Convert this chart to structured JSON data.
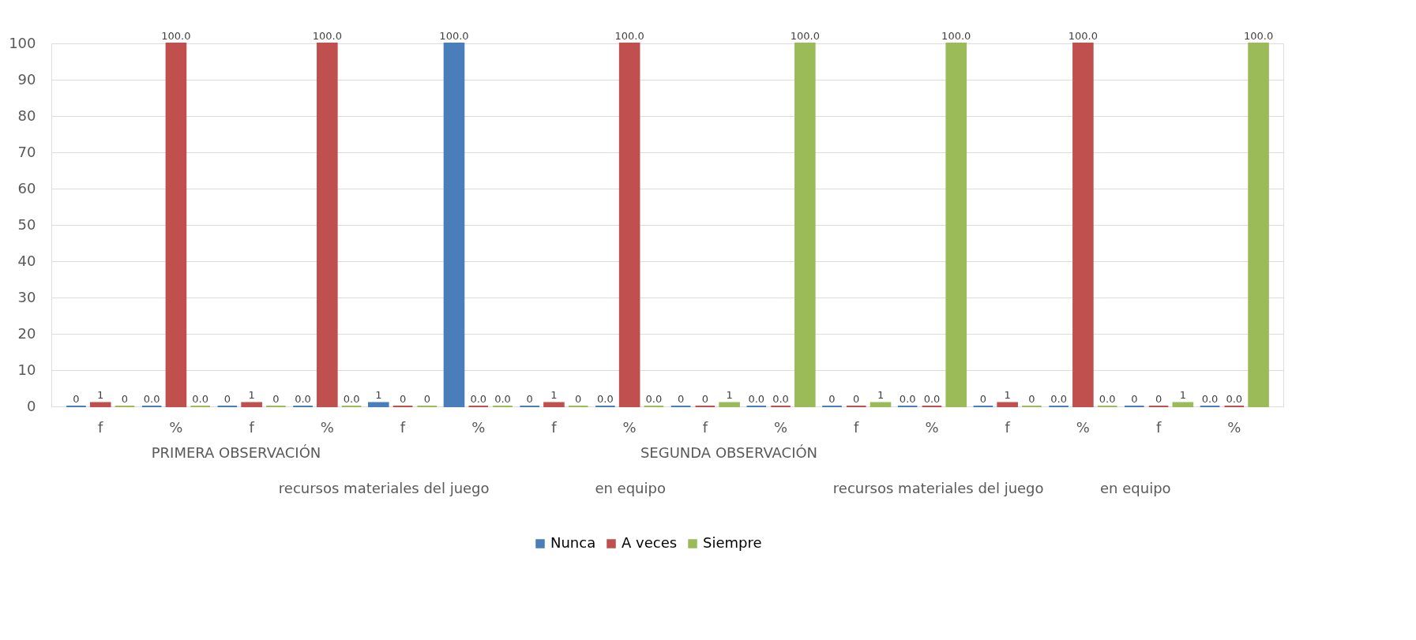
{
  "chart_data": {
    "type": "bar",
    "categories": [
      "f",
      "%",
      "f",
      "%",
      "f",
      "%",
      "f",
      "%",
      "f",
      "%",
      "f",
      "%",
      "f",
      "%",
      "f",
      "%"
    ],
    "series": [
      {
        "name": "Nunca",
        "color": "#4a7ebb",
        "values": [
          0,
          0,
          0,
          0,
          1,
          100,
          0,
          0,
          0,
          0,
          0,
          0,
          0,
          0,
          0,
          0
        ],
        "value_labels": [
          "0",
          "0.0",
          "0",
          "0.0",
          "1",
          "100.0",
          "0",
          "0.0",
          "0",
          "0.0",
          "0",
          "0.0",
          "0",
          "0.0",
          "0",
          "0.0"
        ]
      },
      {
        "name": "A veces",
        "color": "#c0504d",
        "values": [
          1,
          100,
          1,
          100,
          0,
          0,
          1,
          100,
          0,
          0,
          0,
          0,
          1,
          100,
          0,
          0
        ],
        "value_labels": [
          "1",
          "100.0",
          "1",
          "100.0",
          "0",
          "0.0",
          "1",
          "100.0",
          "0",
          "0.0",
          "0",
          "0.0",
          "1",
          "100.0",
          "0",
          "0.0"
        ]
      },
      {
        "name": "Siempre",
        "color": "#9bbb59",
        "values": [
          0,
          0,
          0,
          0,
          0,
          0,
          0,
          0,
          1,
          100,
          1,
          100,
          0,
          0,
          1,
          100
        ],
        "value_labels": [
          "0",
          "0.0",
          "0",
          "0.0",
          "0",
          "0.0",
          "0",
          "0.0",
          "1",
          "100.0",
          "1",
          "100.0",
          "0",
          "0.0",
          "1",
          "100.0"
        ]
      }
    ],
    "ylim": [
      0,
      100
    ],
    "yticks": [
      0,
      10,
      20,
      30,
      40,
      50,
      60,
      70,
      80,
      90,
      100
    ],
    "grid": "y",
    "legend": "bottom",
    "annotations": [
      "PRIMERA OBSERVACIÓN",
      "SEGUNDA OBSERVACIÓN",
      "recursos materiales del juego",
      "en equipo",
      "recursos materiales del juego",
      "en equipo"
    ]
  }
}
